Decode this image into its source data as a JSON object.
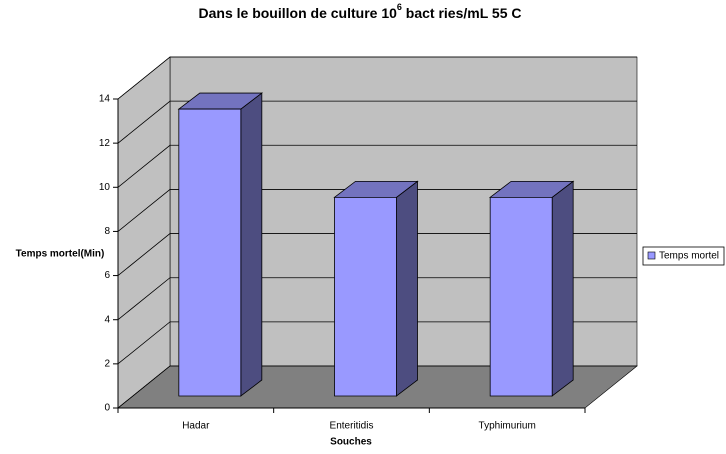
{
  "chart_data": {
    "type": "bar3d",
    "title": [
      "Dans le bouillon de culture 10",
      "6",
      " bact  ries/mL 55  C"
    ],
    "x_label": "Souches",
    "y_label": "Temps mortel(Min)",
    "categories": [
      "Hadar",
      "Enteritidis",
      "Typhimurium"
    ],
    "series": [
      {
        "name": "Temps mortel",
        "color": "#9999ff",
        "values": [
          13,
          9,
          9
        ]
      }
    ],
    "ylim": [
      0,
      14
    ],
    "yticks": [
      0,
      2,
      4,
      6,
      8,
      10,
      12,
      14
    ],
    "grid": true,
    "legend": "right"
  }
}
